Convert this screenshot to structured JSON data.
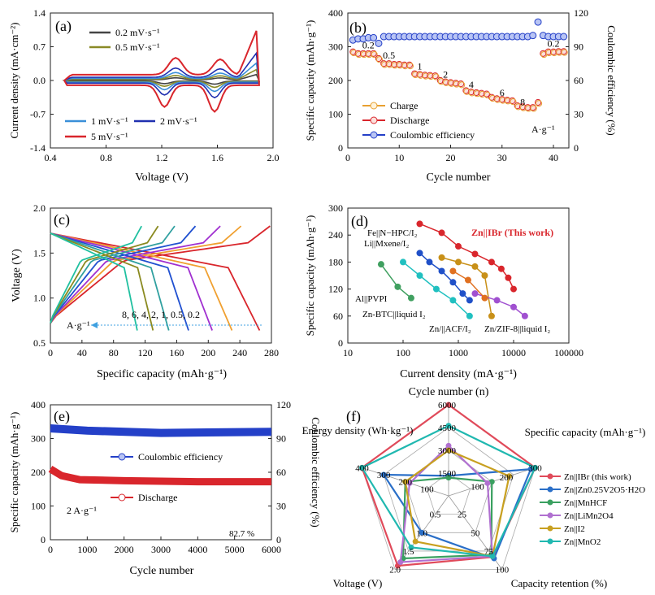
{
  "figure": {
    "description_colors": {
      "red": "#d9262c",
      "blue": "#2440c8",
      "orange": "#e8a030",
      "olive": "#8a8a26",
      "cyan": "#20b8b0"
    }
  },
  "chart_data": [
    {
      "id": "a",
      "type": "line",
      "panel_label": "(a)",
      "xlabel": "Voltage (V)",
      "ylabel": "Current density (mA·cm⁻²)",
      "xlim": [
        0.4,
        2.0
      ],
      "ylim": [
        -1.4,
        1.4
      ],
      "xticks": [
        "0.4",
        "0.8",
        "1.2",
        "1.6",
        "2.0"
      ],
      "yticks": [
        "-1.4",
        "-0.7",
        "0.0",
        "0.7",
        "1.4"
      ],
      "series": [
        {
          "name": "0.2 mV·s⁻¹",
          "color": "#444444",
          "scale": 0.12
        },
        {
          "name": "0.5 mV·s⁻¹",
          "color": "#8a8a26",
          "scale": 0.22
        },
        {
          "name": "1 mV·s⁻¹",
          "color": "#3a8fd8",
          "scale": 0.35
        },
        {
          "name": "2 mV·s⁻¹",
          "color": "#2030b0",
          "scale": 0.55
        },
        {
          "name": "5 mV·s⁻¹",
          "color": "#d9262c",
          "scale": 1.0
        }
      ]
    },
    {
      "id": "b",
      "type": "scatter",
      "panel_label": "(b)",
      "xlabel": "Cycle number",
      "ylabel": "Specific capacity (mAh·g⁻¹)",
      "y2label": "Coulombic efficiency (%)",
      "xlim": [
        0,
        43
      ],
      "ylim": [
        0,
        400
      ],
      "y2lim": [
        0,
        120
      ],
      "xticks": [
        "0",
        "10",
        "20",
        "30",
        "40"
      ],
      "yticks": [
        "0",
        "100",
        "200",
        "300",
        "400"
      ],
      "y2ticks": [
        "0",
        "30",
        "60",
        "90",
        "120"
      ],
      "legend": [
        "Charge",
        "Discharge",
        "Coulombic efficiency"
      ],
      "rate_labels": [
        "0.2",
        "0.5",
        "1",
        "2",
        "4",
        "6",
        "8",
        "0.2"
      ],
      "unit_label": "A·g⁻¹",
      "discharge": [
        285,
        280,
        280,
        280,
        280,
        265,
        250,
        250,
        248,
        248,
        246,
        246,
        220,
        218,
        216,
        215,
        214,
        200,
        196,
        194,
        192,
        190,
        170,
        166,
        164,
        162,
        160,
        150,
        146,
        144,
        142,
        140,
        125,
        122,
        120,
        120,
        135,
        280,
        285,
        285,
        286,
        286
      ],
      "ce": [
        96,
        97,
        97,
        98,
        98,
        93,
        99,
        99,
        99,
        99,
        99,
        99,
        99,
        99,
        99,
        99,
        99,
        99,
        99,
        99,
        99,
        99,
        99,
        99,
        99,
        99,
        99,
        99,
        99,
        99,
        99,
        99,
        99,
        99,
        99,
        100,
        112,
        100,
        99,
        99,
        99,
        99
      ]
    },
    {
      "id": "c",
      "type": "line",
      "panel_label": "(c)",
      "xlabel": "Specific capacity (mAh·g⁻¹)",
      "ylabel": "Voltage (V)",
      "xlim": [
        0,
        280
      ],
      "ylim": [
        0.5,
        2.0
      ],
      "xticks": [
        "0",
        "40",
        "80",
        "120",
        "160",
        "200",
        "240",
        "280"
      ],
      "yticks": [
        "0.5",
        "1.0",
        "1.5",
        "2.0"
      ],
      "rate_text": "8,   6,   4,   2,   1,   0.5,   0.2",
      "unit_label": "A·g⁻¹",
      "series": [
        {
          "rate": "0.2",
          "capacity": 265,
          "color": "#d9262c"
        },
        {
          "rate": "0.5",
          "capacity": 230,
          "color": "#f0a030"
        },
        {
          "rate": "1",
          "capacity": 205,
          "color": "#a030d0"
        },
        {
          "rate": "2",
          "capacity": 175,
          "color": "#2050d0"
        },
        {
          "rate": "4",
          "capacity": 150,
          "color": "#30a0a0"
        },
        {
          "rate": "6",
          "capacity": 130,
          "color": "#8a8a20"
        },
        {
          "rate": "8",
          "capacity": 110,
          "color": "#20c0a0"
        }
      ]
    },
    {
      "id": "d",
      "type": "scatter",
      "panel_label": "(d)",
      "xlabel": "Current density (mA·g⁻¹)",
      "ylabel": "Specific capacity (mAh·g⁻¹)",
      "xscale": "log",
      "xlim": [
        10,
        100000
      ],
      "ylim": [
        0,
        300
      ],
      "xticks": [
        "10",
        "100",
        "1000",
        "10000",
        "100000"
      ],
      "yticks": [
        "0",
        "60",
        "120",
        "180",
        "240",
        "300"
      ],
      "series": [
        {
          "name": "Zn||IBr (This work)",
          "color": "#d9262c",
          "points": [
            [
              200,
              265
            ],
            [
              500,
              245
            ],
            [
              1000,
              215
            ],
            [
              2000,
              198
            ],
            [
              4000,
              180
            ],
            [
              6000,
              165
            ],
            [
              8000,
              145
            ],
            [
              10000,
              120
            ]
          ]
        },
        {
          "name": "Fe||N-HPC/I₂",
          "color": "#2050c8",
          "points": [
            [
              200,
              200
            ],
            [
              300,
              180
            ],
            [
              500,
              160
            ],
            [
              800,
              135
            ],
            [
              1200,
              110
            ],
            [
              1600,
              95
            ]
          ]
        },
        {
          "name": "Li||Mxene/I₂",
          "color": "#c89018",
          "points": [
            [
              500,
              190
            ],
            [
              1000,
              180
            ],
            [
              2000,
              170
            ],
            [
              3000,
              150
            ],
            [
              4000,
              60
            ]
          ]
        },
        {
          "name": "Zn/ZIF-8||liquid I₂",
          "color": "#a050d0",
          "points": [
            [
              2000,
              110
            ],
            [
              5000,
              95
            ],
            [
              10000,
              80
            ],
            [
              16000,
              60
            ]
          ]
        },
        {
          "name": "Al||PVPI",
          "color": "#40a060",
          "points": [
            [
              40,
              175
            ],
            [
              80,
              125
            ],
            [
              140,
              100
            ]
          ]
        },
        {
          "name": "Zn-BTC||liquid I₂",
          "color": "#20c0c0",
          "points": [
            [
              100,
              180
            ],
            [
              200,
              150
            ],
            [
              400,
              120
            ],
            [
              800,
              95
            ],
            [
              1600,
              60
            ]
          ]
        },
        {
          "name": "Zn/||ACF/I₂",
          "color": "#e07020",
          "points": [
            [
              800,
              160
            ],
            [
              1500,
              140
            ],
            [
              3000,
              100
            ]
          ]
        }
      ],
      "labels": [
        "Zn||IBr (This work)",
        "Fe||N−HPC/I₂",
        "Li||Mxene/I₂",
        "Al||PVPI",
        "Zn-BTC||liquid I₂",
        "Zn/||ACF/I₂",
        "Zn/ZIF-8||liquid I₂"
      ]
    },
    {
      "id": "e",
      "type": "line",
      "panel_label": "(e)",
      "xlabel": "Cycle number",
      "ylabel": "Specific capacity (mAh·g⁻¹)",
      "y2label": "Coulombic efficiency (%)",
      "xlim": [
        0,
        6000
      ],
      "ylim": [
        0,
        400
      ],
      "y2lim": [
        0,
        120
      ],
      "xticks": [
        "0",
        "1000",
        "2000",
        "3000",
        "4000",
        "5000",
        "6000"
      ],
      "yticks": [
        "0",
        "100",
        "200",
        "300",
        "400"
      ],
      "y2ticks": [
        "0",
        "30",
        "60",
        "90",
        "120"
      ],
      "legend": [
        "Coulombic efficiency",
        "Discharge"
      ],
      "rate_text": "2 A·g⁻¹",
      "retention_text": "82.7 %",
      "discharge": [
        [
          0,
          210
        ],
        [
          300,
          190
        ],
        [
          800,
          178
        ],
        [
          2000,
          175
        ],
        [
          4000,
          172
        ],
        [
          6000,
          172
        ]
      ],
      "ce": [
        [
          0,
          99
        ],
        [
          1000,
          97
        ],
        [
          3000,
          95
        ],
        [
          6000,
          96
        ]
      ]
    },
    {
      "id": "f",
      "type": "radar",
      "panel_label": "(f)",
      "axes": [
        "Cycle number (n)",
        "Specific capacity (mAh·g⁻¹)",
        "Capacity retention (%)",
        "Voltage (V)",
        "Energy density (Wh·kg⁻¹)"
      ],
      "axis_ticks": [
        [
          "0",
          "1500",
          "3000",
          "4500",
          "6000"
        ],
        [
          "0",
          "100",
          "200",
          "300"
        ],
        [
          "0",
          "25",
          "50",
          "75",
          "100"
        ],
        [
          "0",
          "0.5",
          "1.0",
          "1.5",
          "2.0"
        ],
        [
          "0",
          "100",
          "200",
          "300",
          "400"
        ]
      ],
      "series": [
        {
          "name": "Zn||IBr (this work)",
          "color": "#e04a5a",
          "values": [
            1.0,
            1.0,
            0.83,
            0.95,
            1.0
          ]
        },
        {
          "name": "Zn||Zn0.25V2O5·H2O",
          "color": "#2a6fc8",
          "values": [
            0.22,
            0.95,
            0.85,
            0.5,
            0.75
          ]
        },
        {
          "name": "Zn||MnHCF",
          "color": "#3aa060",
          "values": [
            0.2,
            0.5,
            0.8,
            0.85,
            0.5
          ]
        },
        {
          "name": "Zn||LiMn2O4",
          "color": "#b070d0",
          "values": [
            0.55,
            0.45,
            0.82,
            0.9,
            0.45
          ]
        },
        {
          "name": "Zn||I2",
          "color": "#c8a020",
          "values": [
            0.5,
            0.7,
            0.82,
            0.62,
            0.5
          ]
        },
        {
          "name": "Zn||MnO2",
          "color": "#20b8b0",
          "values": [
            0.77,
            1.0,
            0.82,
            0.7,
            1.0
          ]
        }
      ]
    }
  ]
}
